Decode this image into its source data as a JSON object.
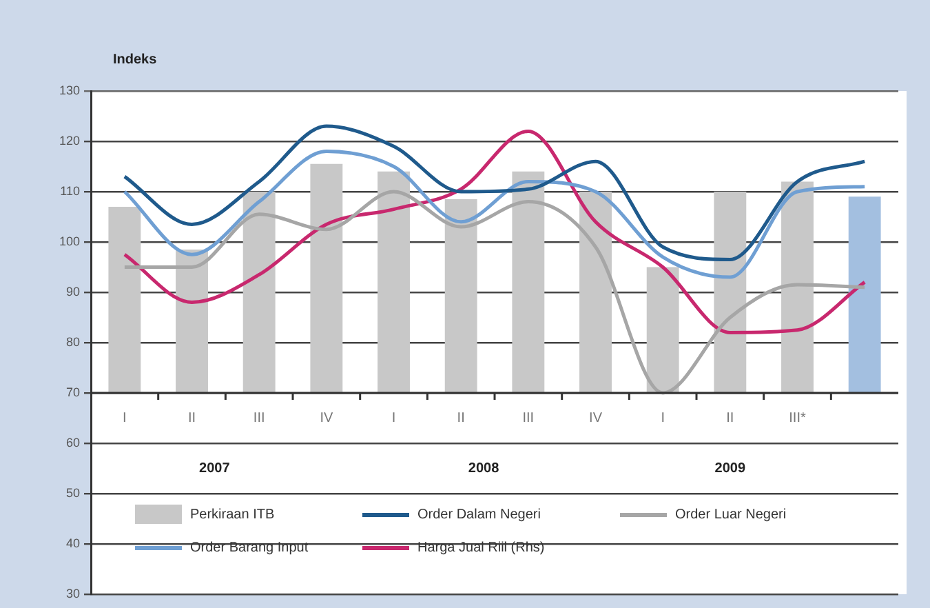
{
  "chart_data": {
    "type": "bar",
    "ylabel": "Indeks",
    "categories": [
      "I",
      "II",
      "III",
      "IV",
      "I",
      "II",
      "III",
      "IV",
      "I",
      "II",
      "III*",
      null
    ],
    "annotations": [
      "2007",
      "2008",
      "2009"
    ],
    "series": [
      {
        "name": "Perkiraan ITB",
        "colors": [
          "#c8c8c8",
          "#c8c8c8",
          "#c8c8c8",
          "#c8c8c8",
          "#c8c8c8",
          "#c8c8c8",
          "#c8c8c8",
          "#c8c8c8",
          "#c8c8c8",
          "#c8c8c8",
          "#c8c8c8",
          "#a3bfe0"
        ],
        "base": [
          70,
          70,
          70,
          70,
          70,
          70,
          70,
          70,
          70,
          70,
          70,
          70
        ],
        "values": [
          37,
          28.5,
          40,
          45.5,
          44,
          38.5,
          44,
          40,
          25,
          40,
          42,
          39
        ]
      },
      {
        "name": "Order Dalam Negeri",
        "type": "line",
        "color": "#1f5a8c",
        "values": [
          113,
          103.5,
          112,
          123,
          119,
          110,
          110.5,
          116,
          99,
          96.5,
          112,
          116
        ]
      },
      {
        "name": "Order Luar Negeri",
        "type": "line",
        "color": "#a6a6a6",
        "values": [
          95,
          95,
          105.5,
          102.5,
          110,
          103,
          108,
          99,
          70,
          85,
          91.5,
          91
        ]
      },
      {
        "name": "Order Barang Input",
        "type": "line",
        "color": "#6f9fd3",
        "values": [
          110,
          97.5,
          108,
          118,
          115,
          104,
          112,
          110,
          97,
          93,
          110,
          111
        ]
      },
      {
        "name": "Harga Jual Riil (Rhs)",
        "type": "line",
        "color": "#c8286e",
        "values": [
          97.5,
          88,
          93.5,
          103.5,
          106.5,
          110.5,
          122,
          104,
          95,
          82,
          82.5,
          92
        ]
      }
    ],
    "ylim": [
      30,
      130
    ],
    "yticks": [
      30,
      40,
      50,
      60,
      70,
      80,
      90,
      100,
      110,
      120,
      130
    ],
    "grid": "y",
    "legend": "bottom",
    "marker": "none"
  }
}
